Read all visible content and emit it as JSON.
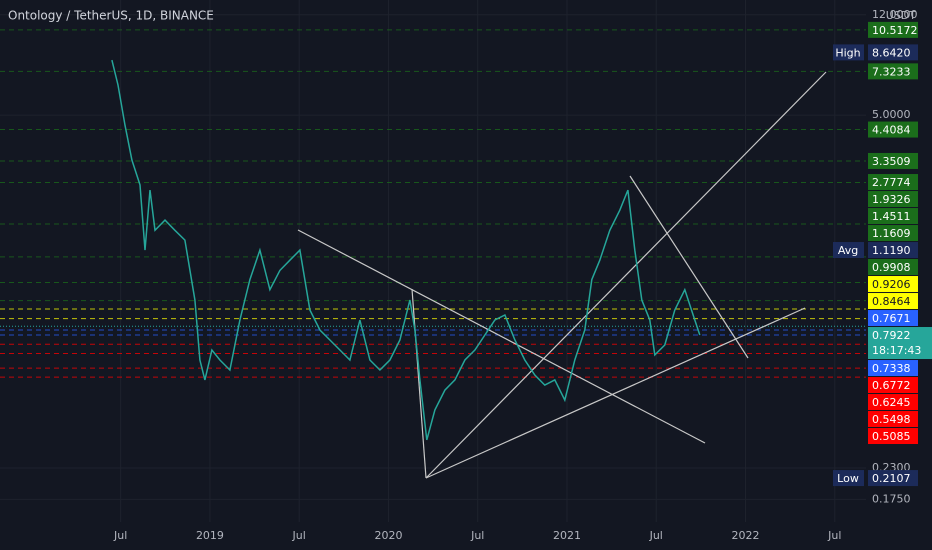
{
  "chart_data": {
    "type": "line",
    "title": "Ontology / TetherUS, 1D, BINANCE",
    "y_label": "USDT",
    "log_y": true,
    "grid": true,
    "xlim": [
      2017.824,
      2022.675
    ],
    "xticks": [
      {
        "value": 2018.5,
        "label": "Jul"
      },
      2019,
      {
        "value": 2019.5,
        "label": "Jul"
      },
      2020,
      {
        "value": 2020.5,
        "label": "Jul"
      },
      2021,
      {
        "value": 2021.5,
        "label": "Jul"
      },
      2022,
      {
        "value": 2022.5,
        "label": "Jul"
      }
    ],
    "ylim": [
      0.1436,
      13.65
    ],
    "yticks": [
      {
        "value": 12,
        "label": "12.0000"
      },
      {
        "value": 5,
        "label": "5.0000"
      },
      {
        "value": 0.23,
        "label": "0.2300"
      },
      {
        "value": 0.175,
        "label": "0.1750"
      }
    ],
    "x": [
      2018.451,
      2018.485,
      2018.524,
      2018.563,
      2018.608,
      2018.636,
      2018.664,
      2018.692,
      2018.748,
      2018.804,
      2018.86,
      2018.916,
      2018.944,
      2018.972,
      2019.011,
      2019.056,
      2019.112,
      2019.168,
      2019.224,
      2019.28,
      2019.336,
      2019.392,
      2019.448,
      2019.504,
      2019.56,
      2019.616,
      2019.672,
      2019.728,
      2019.784,
      2019.84,
      2019.896,
      2019.952,
      2020.008,
      2020.064,
      2020.12,
      2020.148,
      2020.176,
      2020.215,
      2020.26,
      2020.316,
      2020.372,
      2020.428,
      2020.484,
      2020.54,
      2020.596,
      2020.652,
      2020.708,
      2020.764,
      2020.82,
      2020.876,
      2020.932,
      2020.988,
      2021.044,
      2021.1,
      2021.139,
      2021.184,
      2021.24,
      2021.296,
      2021.341,
      2021.38,
      2021.419,
      2021.464,
      2021.492,
      2021.548,
      2021.604,
      2021.66,
      2021.716,
      2021.744
    ],
    "series": [
      {
        "color": "#26a69a",
        "values": [
          8.08,
          6.5,
          4.58,
          3.38,
          2.72,
          1.54,
          2.6,
          1.83,
          2.0,
          1.83,
          1.68,
          0.996,
          0.59,
          0.496,
          0.644,
          0.59,
          0.541,
          0.837,
          1.19,
          1.54,
          1.09,
          1.29,
          1.41,
          1.54,
          0.913,
          0.767,
          0.703,
          0.644,
          0.59,
          0.837,
          0.59,
          0.541,
          0.59,
          0.703,
          0.996,
          0.767,
          0.496,
          0.294,
          0.382,
          0.454,
          0.496,
          0.59,
          0.644,
          0.734,
          0.837,
          0.874,
          0.703,
          0.59,
          0.518,
          0.474,
          0.496,
          0.416,
          0.59,
          0.767,
          1.19,
          1.41,
          1.83,
          2.18,
          2.6,
          1.54,
          0.996,
          0.837,
          0.617,
          0.673,
          0.913,
          1.09,
          0.837,
          0.734
        ]
      }
    ],
    "levels": [
      {
        "value": 10.5172,
        "color": "#1b6e1b"
      },
      {
        "value": 7.3233,
        "color": "#1b6e1b"
      },
      {
        "value": 4.4084,
        "color": "#1b6e1b"
      },
      {
        "value": 3.3509,
        "color": "#1b6e1b"
      },
      {
        "value": 2.7774,
        "color": "#1b6e1b"
      },
      {
        "value": 1.9326,
        "color": "#1b6e1b"
      },
      {
        "value": 1.4511,
        "color": "#1b6e1b"
      },
      {
        "value": 1.1609,
        "color": "#1b6e1b"
      },
      {
        "value": 0.9908,
        "color": "#1b6e1b"
      },
      {
        "value": 0.9206,
        "color": "#ffff00",
        "text_color": "#131722"
      },
      {
        "value": 0.8464,
        "color": "#ffff00",
        "text_color": "#131722"
      },
      {
        "value": 0.7671,
        "color": "#2962ff"
      },
      {
        "value": 0.7338,
        "color": "#2962ff"
      },
      {
        "value": 0.6772,
        "color": "#ff0000"
      },
      {
        "value": 0.6245,
        "color": "#ff0000"
      },
      {
        "value": 0.5498,
        "color": "#ff0000"
      },
      {
        "value": 0.5085,
        "color": "#ff0000"
      }
    ],
    "current": {
      "value": 0.7922,
      "countdown": "18:17:43",
      "color": "#26a69a"
    },
    "markers": [
      {
        "name": "High",
        "value": 8.642,
        "value_label": "8.6420"
      },
      {
        "name": "Avg",
        "value": 1.119,
        "value_label": "1.1190"
      },
      {
        "name": "Low",
        "value": 0.2107
      }
    ]
  }
}
